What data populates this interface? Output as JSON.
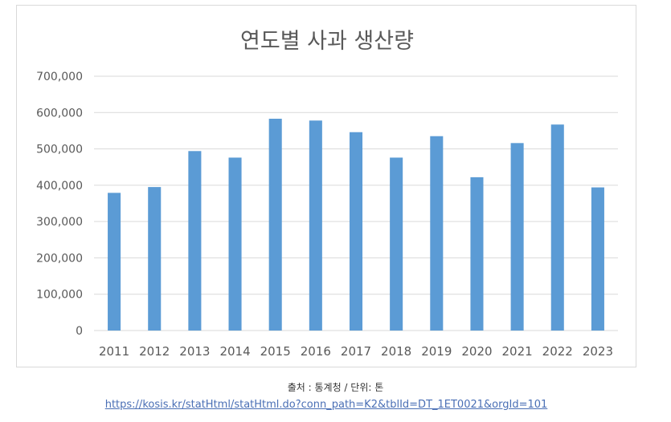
{
  "chart_data": {
    "type": "bar",
    "title": "연도별 사과 생산량",
    "xlabel": "",
    "ylabel": "",
    "categories": [
      "2011",
      "2012",
      "2013",
      "2014",
      "2015",
      "2016",
      "2017",
      "2018",
      "2019",
      "2020",
      "2021",
      "2022",
      "2023"
    ],
    "values": [
      379000,
      395000,
      494000,
      476000,
      583000,
      578000,
      546000,
      476000,
      535000,
      422000,
      516000,
      567000,
      394000
    ],
    "ylim": [
      0,
      700000
    ],
    "yticks": [
      0,
      100000,
      200000,
      300000,
      400000,
      500000,
      600000,
      700000
    ],
    "ytick_labels": [
      "0",
      "100,000",
      "200,000",
      "300,000",
      "400,000",
      "500,000",
      "600,000",
      "700,000"
    ],
    "grid": true,
    "bar_color": "#5b9bd5",
    "grid_color": "#d9d9d9"
  },
  "source": {
    "text": "출처 : 통계청 / 단위: 톤",
    "link": "https://kosis.kr/statHtml/statHtml.do?conn_path=K2&tblId=DT_1ET0021&orgId=101"
  }
}
